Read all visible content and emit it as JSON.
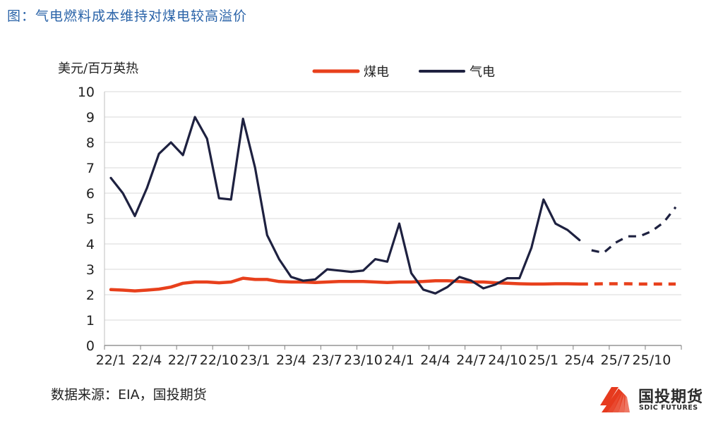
{
  "figure_title": "图：气电燃料成本维持对煤电较高溢价",
  "source": "数据来源：EIA，国投期货",
  "logo": {
    "cn": "国投期货",
    "en": "SDIC FUTURES",
    "color": "#e63a1e"
  },
  "chart_data": {
    "type": "line",
    "title": "气电燃料成本维持对煤电较高溢价",
    "ylabel": "美元/百万英热",
    "xlabel": "",
    "ylim": [
      0,
      10
    ],
    "yticks": [
      0,
      1,
      2,
      3,
      4,
      5,
      6,
      7,
      8,
      9,
      10
    ],
    "grid": true,
    "legend_position": "top",
    "x_tick_labels": [
      "22/1",
      "22/4",
      "22/7",
      "22/10",
      "23/1",
      "23/4",
      "23/7",
      "23/10",
      "24/1",
      "24/4",
      "24/7",
      "24/10",
      "25/1",
      "25/4",
      "25/7",
      "25/10"
    ],
    "x_start": "2022-01",
    "x_end": "2025-12",
    "series": [
      {
        "name": "煤电",
        "color": "#e8401c",
        "actual": [
          [
            "2022-01",
            2.2
          ],
          [
            "2022-02",
            2.18
          ],
          [
            "2022-03",
            2.15
          ],
          [
            "2022-04",
            2.18
          ],
          [
            "2022-05",
            2.22
          ],
          [
            "2022-06",
            2.3
          ],
          [
            "2022-07",
            2.45
          ],
          [
            "2022-08",
            2.5
          ],
          [
            "2022-09",
            2.5
          ],
          [
            "2022-10",
            2.47
          ],
          [
            "2022-11",
            2.5
          ],
          [
            "2022-12",
            2.65
          ],
          [
            "2023-01",
            2.6
          ],
          [
            "2023-02",
            2.6
          ],
          [
            "2023-03",
            2.52
          ],
          [
            "2023-04",
            2.5
          ],
          [
            "2023-05",
            2.5
          ],
          [
            "2023-06",
            2.48
          ],
          [
            "2023-07",
            2.5
          ],
          [
            "2023-08",
            2.52
          ],
          [
            "2023-09",
            2.52
          ],
          [
            "2023-10",
            2.52
          ],
          [
            "2023-11",
            2.5
          ],
          [
            "2023-12",
            2.48
          ],
          [
            "2024-01",
            2.5
          ],
          [
            "2024-02",
            2.5
          ],
          [
            "2024-03",
            2.52
          ],
          [
            "2024-04",
            2.55
          ],
          [
            "2024-05",
            2.55
          ],
          [
            "2024-06",
            2.52
          ],
          [
            "2024-07",
            2.5
          ],
          [
            "2024-08",
            2.5
          ],
          [
            "2024-09",
            2.47
          ],
          [
            "2024-10",
            2.45
          ],
          [
            "2024-11",
            2.43
          ],
          [
            "2024-12",
            2.42
          ],
          [
            "2025-01",
            2.42
          ],
          [
            "2025-02",
            2.43
          ],
          [
            "2025-03",
            2.43
          ],
          [
            "2025-04",
            2.42
          ]
        ],
        "forecast": [
          [
            "2025-04",
            2.42
          ],
          [
            "2025-05",
            2.42
          ],
          [
            "2025-06",
            2.43
          ],
          [
            "2025-07",
            2.43
          ],
          [
            "2025-08",
            2.43
          ],
          [
            "2025-09",
            2.42
          ],
          [
            "2025-10",
            2.42
          ],
          [
            "2025-11",
            2.42
          ],
          [
            "2025-12",
            2.42
          ]
        ]
      },
      {
        "name": "气电",
        "color": "#1e2140",
        "actual": [
          [
            "2022-01",
            6.6
          ],
          [
            "2022-02",
            6.0
          ],
          [
            "2022-03",
            5.1
          ],
          [
            "2022-04",
            6.2
          ],
          [
            "2022-05",
            7.55
          ],
          [
            "2022-06",
            8.0
          ],
          [
            "2022-07",
            7.5
          ],
          [
            "2022-08",
            9.0
          ],
          [
            "2022-09",
            8.15
          ],
          [
            "2022-10",
            5.8
          ],
          [
            "2022-11",
            5.75
          ],
          [
            "2022-12",
            8.93
          ],
          [
            "2023-01",
            7.0
          ],
          [
            "2023-02",
            4.35
          ],
          [
            "2023-03",
            3.4
          ],
          [
            "2023-04",
            2.7
          ],
          [
            "2023-05",
            2.55
          ],
          [
            "2023-06",
            2.6
          ],
          [
            "2023-07",
            3.0
          ],
          [
            "2023-08",
            2.95
          ],
          [
            "2023-09",
            2.9
          ],
          [
            "2023-10",
            2.95
          ],
          [
            "2023-11",
            3.4
          ],
          [
            "2023-12",
            3.3
          ],
          [
            "2024-01",
            4.8
          ],
          [
            "2024-02",
            2.85
          ],
          [
            "2024-03",
            2.2
          ],
          [
            "2024-04",
            2.05
          ],
          [
            "2024-05",
            2.3
          ],
          [
            "2024-06",
            2.7
          ],
          [
            "2024-07",
            2.55
          ],
          [
            "2024-08",
            2.25
          ],
          [
            "2024-09",
            2.4
          ],
          [
            "2024-10",
            2.65
          ],
          [
            "2024-11",
            2.65
          ],
          [
            "2024-12",
            3.85
          ],
          [
            "2025-01",
            5.75
          ],
          [
            "2025-02",
            4.8
          ],
          [
            "2025-03",
            4.55
          ],
          [
            "2025-04",
            4.15
          ]
        ],
        "forecast": [
          [
            "2025-05",
            3.75
          ],
          [
            "2025-06",
            3.65
          ],
          [
            "2025-07",
            4.05
          ],
          [
            "2025-08",
            4.3
          ],
          [
            "2025-09",
            4.3
          ],
          [
            "2025-10",
            4.5
          ],
          [
            "2025-11",
            4.85
          ],
          [
            "2025-12",
            5.45
          ]
        ]
      }
    ]
  }
}
